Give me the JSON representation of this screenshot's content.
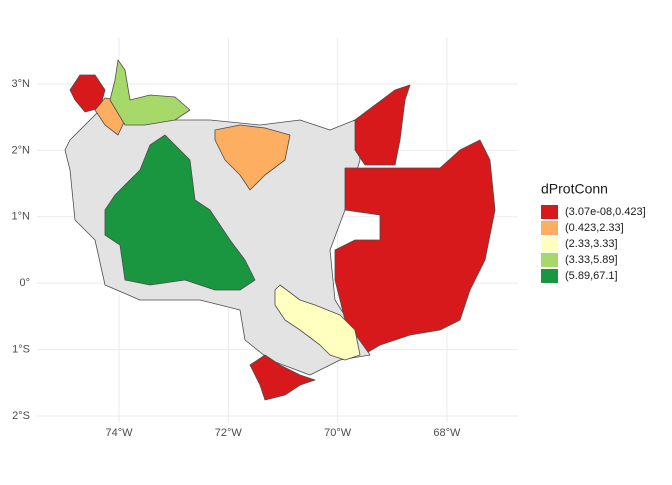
{
  "chart_data": {
    "type": "map",
    "xlim": [
      -75.5,
      -66.7
    ],
    "ylim": [
      -2.1,
      3.7
    ],
    "xticks": [
      {
        "value": -74,
        "label": "74°W"
      },
      {
        "value": -72,
        "label": "72°W"
      },
      {
        "value": -70,
        "label": "70°W"
      },
      {
        "value": -68,
        "label": "68°W"
      }
    ],
    "yticks": [
      {
        "value": 3,
        "label": "3°N"
      },
      {
        "value": 2,
        "label": "2°N"
      },
      {
        "value": 1,
        "label": "1°N"
      },
      {
        "value": 0,
        "label": "0°"
      },
      {
        "value": -1,
        "label": "1°S"
      },
      {
        "value": -2,
        "label": "2°S"
      }
    ],
    "grid": true,
    "legend_title": "dProtConn",
    "legend": [
      {
        "name": "(3.07e-08,0.423]",
        "color": "#d7191c"
      },
      {
        "name": "(0.423,2.33]",
        "color": "#fdae61"
      },
      {
        "name": "(2.33,3.33]",
        "color": "#ffffbf"
      },
      {
        "name": "(3.33,5.89]",
        "color": "#a6d96a"
      },
      {
        "name": "(5.89,67.1]",
        "color": "#1a9641"
      }
    ]
  }
}
